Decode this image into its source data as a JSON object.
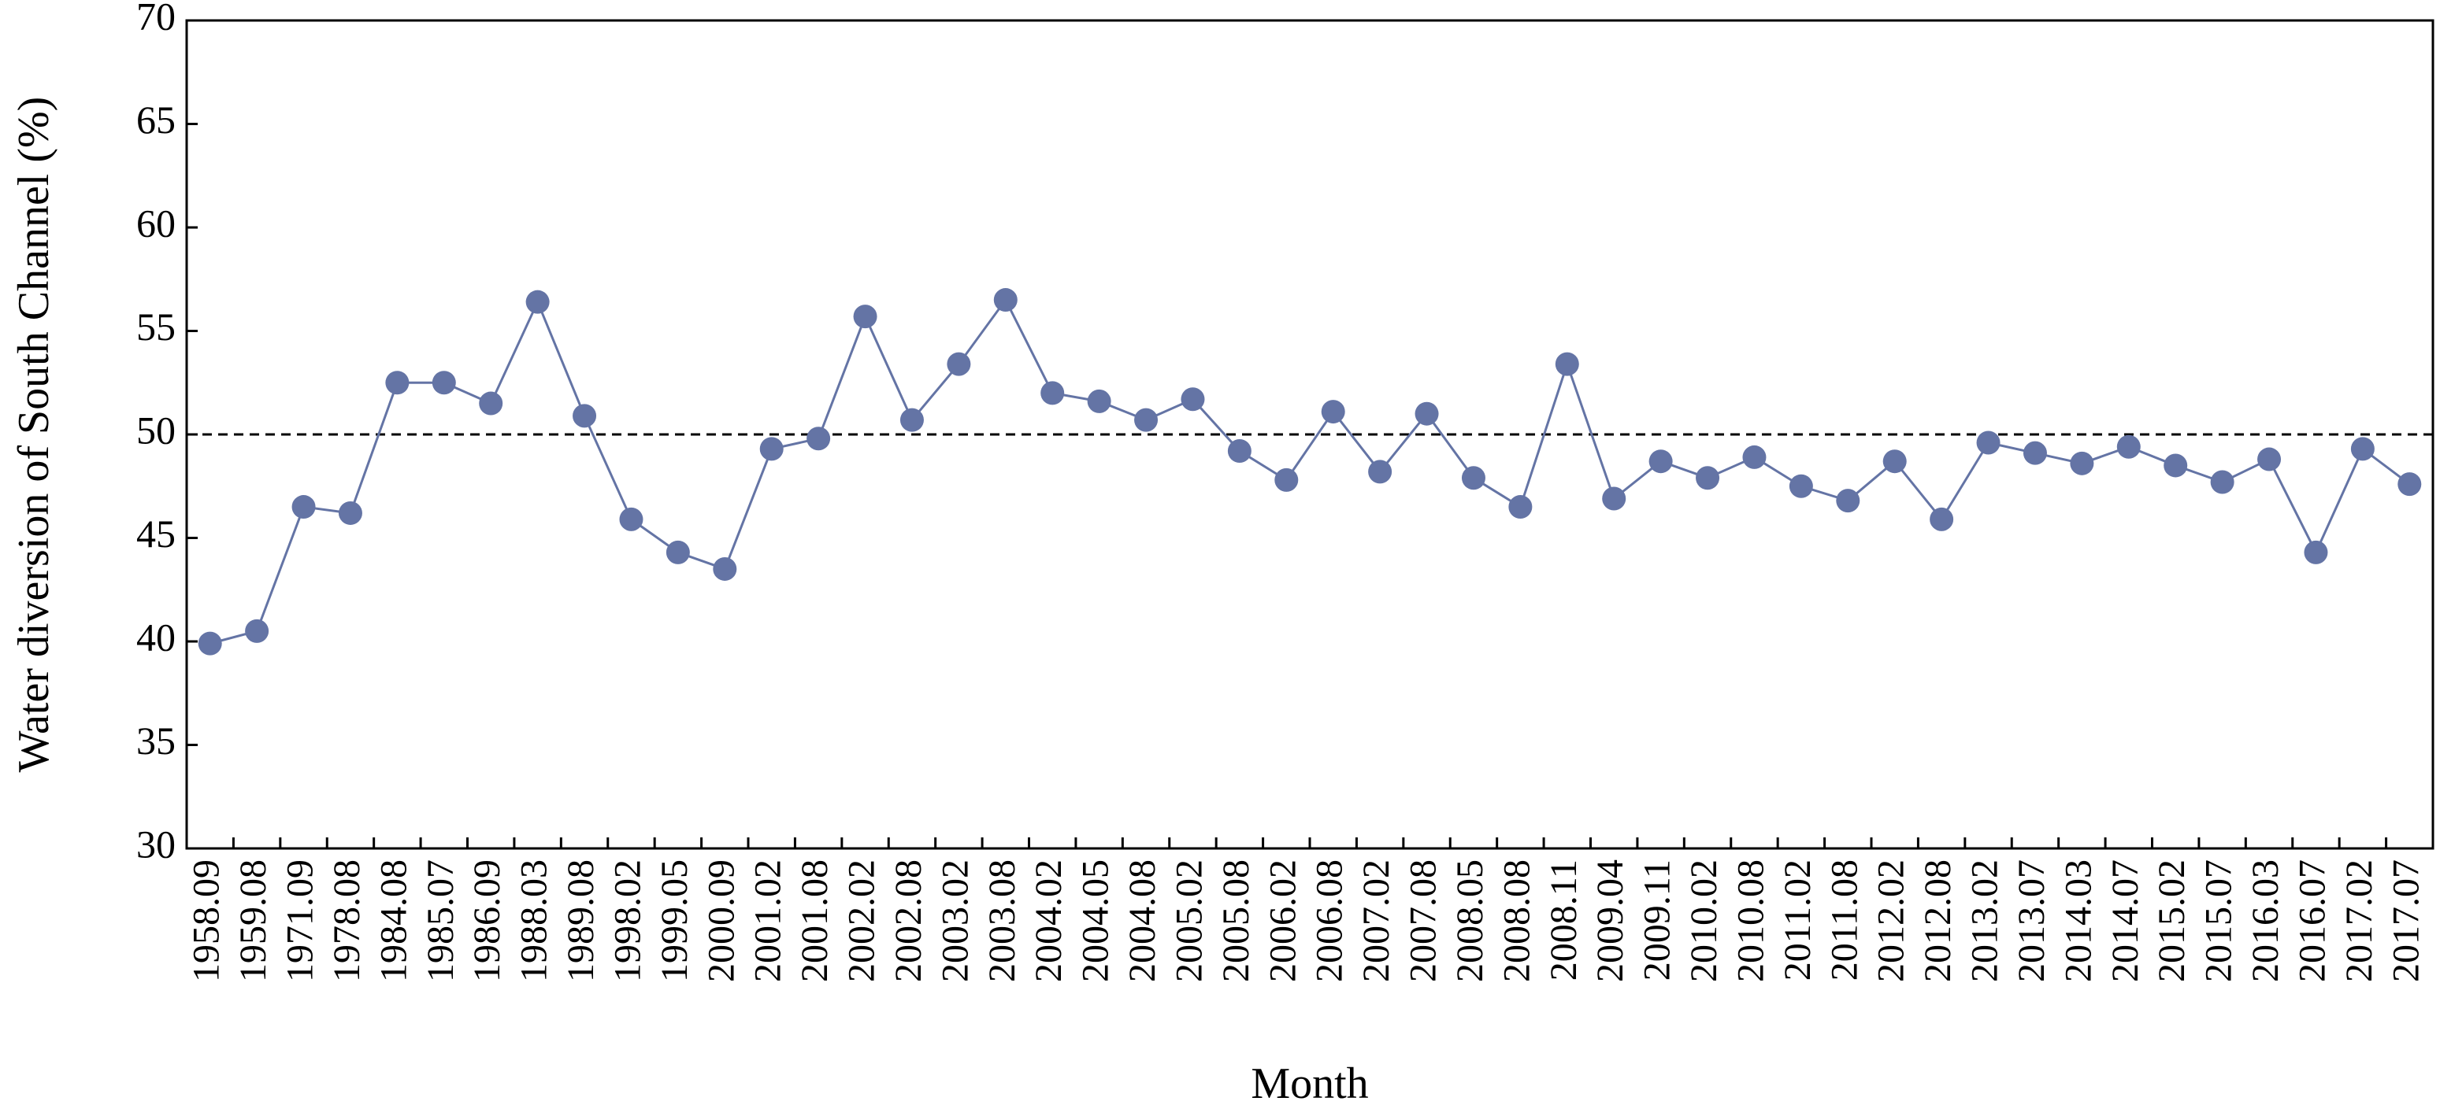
{
  "chart_data": {
    "type": "line",
    "x_label": "Month",
    "y_label": "Water diversion of South Channel (%)",
    "categories": [
      "1958.09",
      "1959.08",
      "1971.09",
      "1978.08",
      "1984.08",
      "1985.07",
      "1986.09",
      "1988.03",
      "1989.08",
      "1998.02",
      "1999.05",
      "2000.09",
      "2001.02",
      "2001.08",
      "2002.02",
      "2002.08",
      "2003.02",
      "2003.08",
      "2004.02",
      "2004.05",
      "2004.08",
      "2005.02",
      "2005.08",
      "2006.02",
      "2006.08",
      "2007.02",
      "2007.08",
      "2008.05",
      "2008.08",
      "2008.11",
      "2009.04",
      "2009.11",
      "2010.02",
      "2010.08",
      "2011.02",
      "2011.08",
      "2012.02",
      "2012.08",
      "2013.02",
      "2013.07",
      "2014.03",
      "2014.07",
      "2015.02",
      "2015.07",
      "2016.03",
      "2016.07",
      "2017.02",
      "2017.07"
    ],
    "values": [
      39.9,
      40.5,
      46.5,
      46.2,
      52.5,
      52.5,
      51.5,
      56.4,
      50.9,
      45.9,
      44.3,
      43.5,
      49.3,
      49.8,
      55.7,
      50.7,
      53.4,
      56.5,
      52.0,
      51.6,
      50.7,
      51.7,
      49.2,
      47.8,
      51.1,
      48.2,
      51.0,
      47.9,
      46.5,
      53.4,
      46.9,
      48.7,
      47.9,
      48.9,
      47.5,
      46.8,
      48.7,
      45.9,
      49.6,
      49.1,
      48.6,
      49.4,
      48.5,
      47.7,
      48.8,
      44.3,
      49.3,
      47.6
    ],
    "color": "#6474a5",
    "ylim": [
      30,
      70
    ],
    "yticks": [
      30,
      35,
      40,
      45,
      50,
      55,
      60,
      65,
      70
    ],
    "reference_line": {
      "value": 50,
      "style": "dashed",
      "color": "#000000"
    }
  }
}
